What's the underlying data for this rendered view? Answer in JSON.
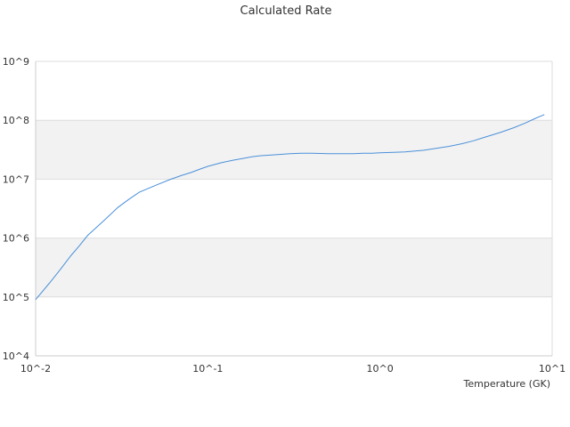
{
  "chart_data": {
    "type": "line",
    "title": "Calculated Rate",
    "xlabel": "Temperature (GK)",
    "ylabel": "",
    "x_scale": "log",
    "y_scale": "log",
    "xlim": [
      0.01,
      10
    ],
    "ylim": [
      10000,
      1000000000
    ],
    "x_tick_labels": [
      "10^-2",
      "10^-1",
      "10^0",
      "10^1"
    ],
    "y_tick_labels": [
      "10^4",
      "10^5",
      "10^6",
      "10^7",
      "10^8",
      "10^9"
    ],
    "grid": "alternating horizontal bands",
    "legend": "none",
    "line_color": "#4a90d9",
    "band_color": "#f2f2f2",
    "series": [
      {
        "x": [
          0.01,
          0.012,
          0.014,
          0.016,
          0.018,
          0.02,
          0.025,
          0.03,
          0.035,
          0.04,
          0.05,
          0.06,
          0.07,
          0.08,
          0.09,
          0.1,
          0.12,
          0.14,
          0.16,
          0.18,
          0.2,
          0.25,
          0.3,
          0.35,
          0.4,
          0.5,
          0.6,
          0.7,
          0.8,
          0.9,
          1.0,
          1.2,
          1.4,
          1.6,
          1.8,
          2.0,
          2.5,
          3.0,
          3.5,
          4.0,
          5.0,
          6.0,
          7.0,
          8.0,
          9.0
        ],
        "y": [
          90000,
          170000,
          300000,
          500000,
          750000,
          1100000,
          2000000,
          3300000,
          4600000,
          6000000,
          7900000,
          9800000,
          11500000,
          13000000,
          14800000,
          16500000,
          19000000,
          21000000,
          22500000,
          24000000,
          25000000,
          26000000,
          27000000,
          27500000,
          27500000,
          27000000,
          27000000,
          27000000,
          27500000,
          27500000,
          28000000,
          28500000,
          29000000,
          30000000,
          31000000,
          32500000,
          36000000,
          40000000,
          45000000,
          51000000,
          62000000,
          75000000,
          90000000,
          108000000,
          125000000
        ]
      }
    ]
  }
}
